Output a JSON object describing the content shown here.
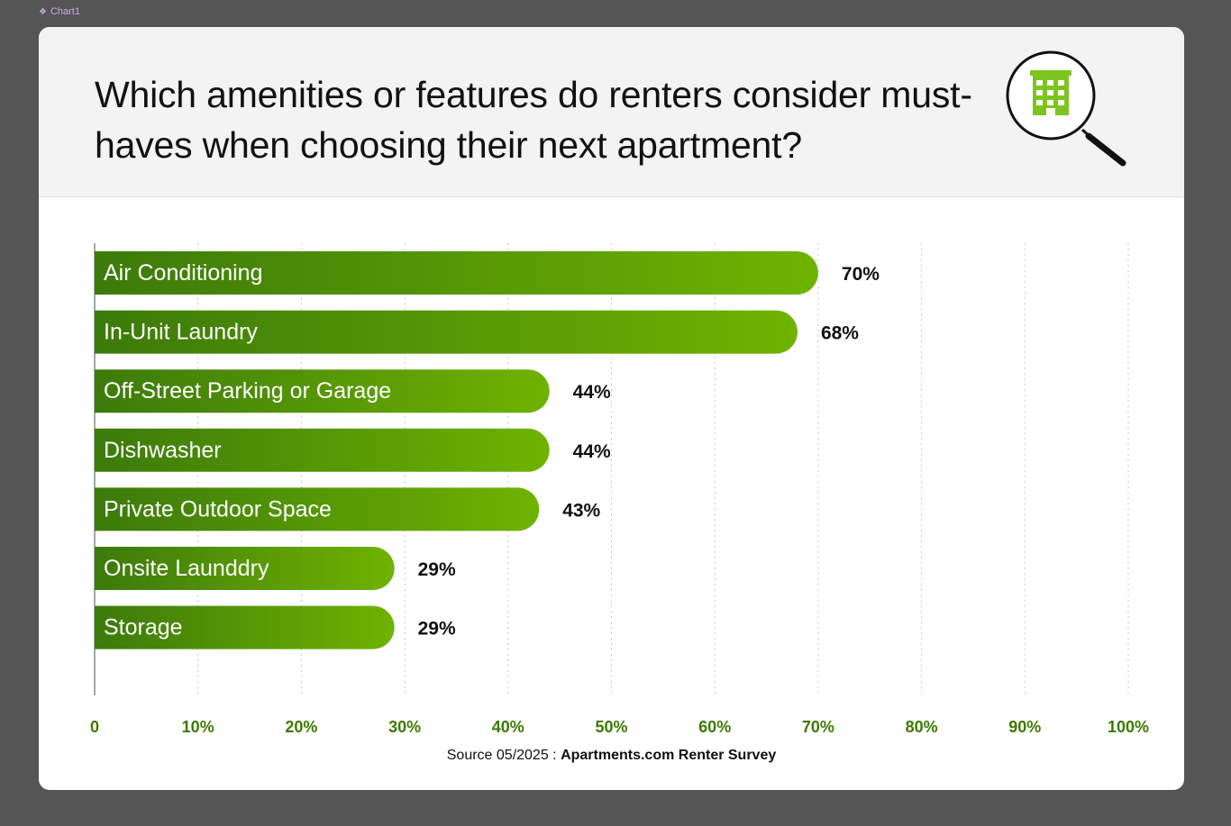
{
  "frame": {
    "label": "Chart1",
    "icon": "component-icon"
  },
  "title": "Which amenities or features do renters consider must-haves when choosing their next apartment?",
  "logo": {
    "icon": "building-magnifier-icon"
  },
  "source": {
    "prefix": "Source 05/2025 : ",
    "name": "Apartments.com Renter Survey"
  },
  "colors": {
    "bar_dark": "#3c7a0a",
    "bar_light": "#6fb300",
    "tick_label": "#3d7a00",
    "logo_green": "#7dc41f",
    "background": "#555555"
  },
  "chart_data": {
    "type": "bar",
    "orientation": "horizontal",
    "categories": [
      "Air Conditioning",
      "In-Unit Laundry",
      "Off-Street Parking or Garage",
      "Dishwasher",
      "Private Outdoor Space",
      "Onsite Launddry",
      "Storage"
    ],
    "values": [
      70,
      68,
      44,
      44,
      43,
      29,
      29
    ],
    "value_labels": [
      "70%",
      "68%",
      "44%",
      "44%",
      "43%",
      "29%",
      "29%"
    ],
    "xlim": [
      0,
      100
    ],
    "xticks": [
      0,
      10,
      20,
      30,
      40,
      50,
      60,
      70,
      80,
      90,
      100
    ],
    "xtick_labels": [
      "0",
      "10%",
      "20%",
      "30%",
      "40%",
      "50%",
      "60%",
      "70%",
      "80%",
      "90%",
      "100%"
    ],
    "grid": "vertical-dotted",
    "title": "Which amenities or features do renters consider must-haves when choosing their next apartment?",
    "xlabel": "",
    "ylabel": ""
  }
}
